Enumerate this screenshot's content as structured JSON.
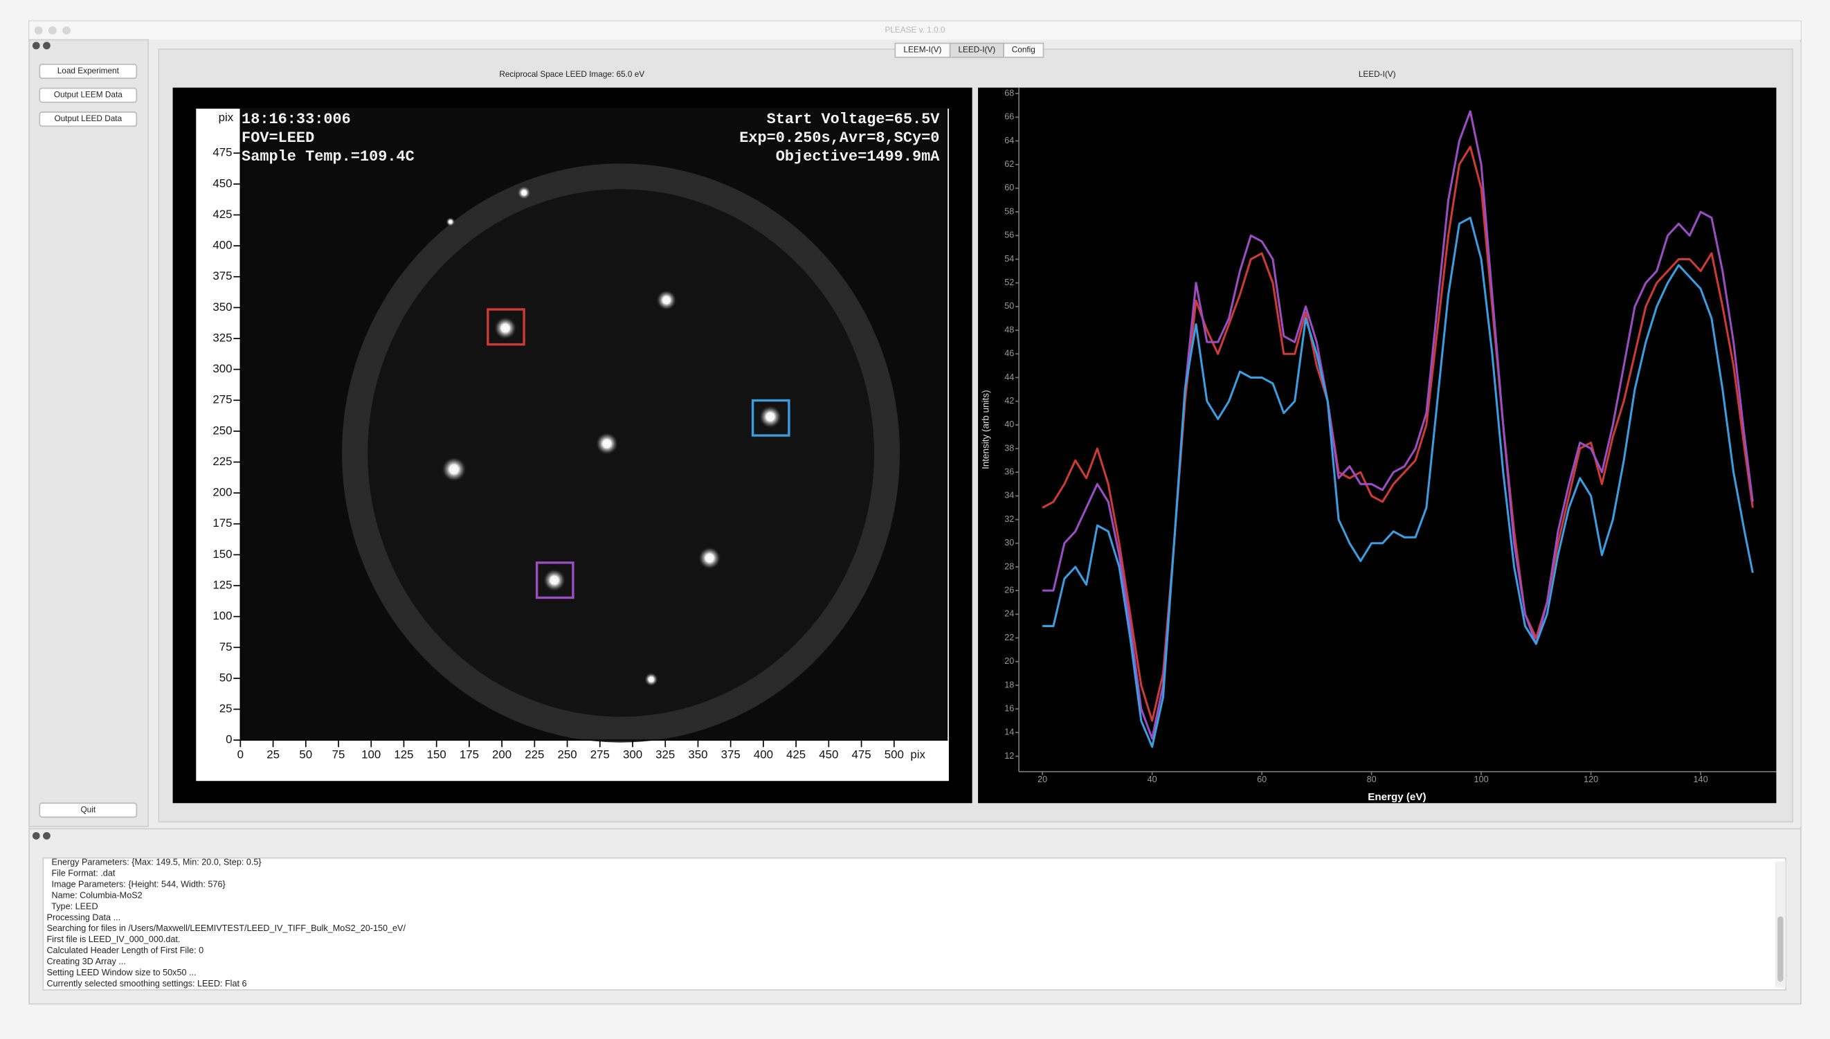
{
  "window": {
    "title": "PLEASE v. 1.0.0"
  },
  "sidebar": {
    "buttons": [
      "Load Experiment",
      "Output LEEM Data",
      "Output LEED Data"
    ],
    "quit": "Quit"
  },
  "tabs": [
    "LEEM-I(V)",
    "LEED-I(V)",
    "Config"
  ],
  "leed_image": {
    "title": "Reciprocal Space LEED Image: 65.0 eV",
    "overlay_left": [
      "18:16:33:006",
      "FOV=LEED",
      "Sample Temp.=109.4C"
    ],
    "overlay_right": [
      "Start Voltage=65.5V",
      "Exp=0.250s,Avr=8,SCy=0",
      "Objective=1499.9mA"
    ],
    "x_unit": "pix",
    "y_unit": "pix",
    "xlim": [
      0,
      541
    ],
    "ylim": [
      0,
      511
    ],
    "xticks": [
      0,
      25,
      50,
      75,
      100,
      125,
      150,
      175,
      200,
      225,
      250,
      275,
      300,
      325,
      350,
      375,
      400,
      425,
      450,
      475,
      500
    ],
    "yticks": [
      0,
      25,
      50,
      75,
      100,
      125,
      150,
      175,
      200,
      225,
      250,
      275,
      300,
      325,
      350,
      375,
      400,
      425,
      450,
      475
    ]
  },
  "chart_data": {
    "type": "line",
    "title": "LEED-I(V)",
    "x_label": "Energy (eV)",
    "y_label": "Intensity (arb units)",
    "xlim": [
      15.7,
      153.8
    ],
    "ylim": [
      10.7,
      68.5
    ],
    "xticks": [
      20,
      40,
      60,
      80,
      100,
      120,
      140
    ],
    "yticks": [
      12,
      14,
      16,
      18,
      20,
      22,
      24,
      26,
      28,
      30,
      32,
      34,
      36,
      38,
      40,
      42,
      44,
      46,
      48,
      50,
      52,
      54,
      56,
      58,
      60,
      62,
      64,
      66,
      68
    ],
    "x": [
      20,
      22,
      24,
      26,
      28,
      30,
      32,
      34,
      36,
      38,
      40,
      42,
      44,
      46,
      48,
      50,
      52,
      54,
      56,
      58,
      60,
      62,
      64,
      66,
      68,
      70,
      72,
      74,
      76,
      78,
      80,
      82,
      84,
      86,
      88,
      90,
      92,
      94,
      96,
      98,
      100,
      102,
      104,
      106,
      108,
      110,
      112,
      114,
      116,
      118,
      120,
      122,
      124,
      126,
      128,
      130,
      132,
      134,
      136,
      138,
      140,
      142,
      144,
      146,
      148,
      149.5
    ],
    "series": [
      {
        "color": "#cc3b36",
        "values": [
          33,
          33.5,
          35,
          37,
          35.5,
          38,
          35,
          30,
          24,
          18,
          15,
          19,
          30,
          42,
          50.5,
          48,
          46,
          48.5,
          51,
          54,
          54.5,
          52,
          46,
          46,
          49.5,
          45,
          42,
          36,
          35.5,
          36,
          34,
          33.5,
          35,
          36,
          37,
          40,
          48,
          56,
          62,
          63.5,
          60,
          50,
          40,
          31,
          24,
          22,
          25,
          30,
          34,
          38,
          38.5,
          35,
          39,
          42,
          46,
          50,
          52,
          53,
          54,
          54,
          53,
          54.5,
          50,
          45,
          38,
          33
        ]
      },
      {
        "color": "#9b4ec4",
        "values": [
          26,
          26,
          30,
          31,
          33,
          35,
          33.5,
          29,
          23,
          16,
          13.5,
          18,
          30,
          43,
          52,
          47,
          47,
          49,
          53,
          56,
          55.5,
          54,
          47.5,
          47,
          50,
          47,
          42,
          35.5,
          36.5,
          35,
          35,
          34.5,
          36,
          36.5,
          38,
          41,
          50,
          59,
          64,
          66.5,
          62,
          51,
          40,
          30,
          24,
          21.5,
          25,
          31,
          35,
          38.5,
          38,
          36,
          40,
          45,
          50,
          52,
          53,
          56,
          57,
          56,
          58,
          57.5,
          53,
          47,
          39,
          33.5
        ]
      },
      {
        "color": "#3a9ee0",
        "values": [
          23,
          23,
          27,
          28,
          26.5,
          31.5,
          31,
          28,
          22,
          15,
          12.8,
          17,
          30,
          43,
          48.5,
          42,
          40.5,
          42,
          44.5,
          44,
          44,
          43.5,
          41,
          42,
          49,
          46,
          42,
          32,
          30,
          28.5,
          30,
          30,
          31,
          30.5,
          30.5,
          33,
          42,
          51,
          57,
          57.5,
          54,
          46,
          36,
          28,
          23,
          21.5,
          24,
          29,
          33,
          35.5,
          34,
          29,
          32,
          37,
          43,
          47,
          50,
          52,
          53.5,
          52.5,
          51.5,
          49,
          43,
          36,
          31,
          27.5
        ]
      }
    ]
  },
  "log": [
    "  Energy Parameters: {Max: 149.5, Min: 20.0, Step: 0.5}",
    "  File Format: .dat",
    "  Image Parameters: {Height: 544, Width: 576}",
    "  Name: Columbia-MoS2",
    "  Type: LEED",
    "Processing Data ...",
    "Searching for files in /Users/Maxwell/LEEMIVTEST/LEED_IV_TIFF_Bulk_MoS2_20-150_eV/",
    "First file is LEED_IV_000_000.dat.",
    "Calculated Header Length of First File: 0",
    "Creating 3D Array ...",
    "Setting LEED Window size to 50x50 ...",
    "Currently selected smoothing settings: LEED: Flat 6"
  ]
}
